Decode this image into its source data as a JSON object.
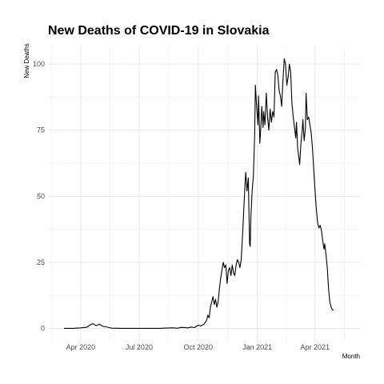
{
  "chart_data": {
    "type": "line",
    "title": "New Deaths of COVID-19 in Slovakia",
    "xlabel": "Month",
    "ylabel": "New Deaths",
    "x_ticks": [
      {
        "date": "2020-04-01",
        "label": "Apr 2020"
      },
      {
        "date": "2020-07-01",
        "label": "Jul 2020"
      },
      {
        "date": "2020-10-01",
        "label": "Oct 2020"
      },
      {
        "date": "2021-01-01",
        "label": "Jan 2021"
      },
      {
        "date": "2021-04-01",
        "label": "Apr 2021"
      }
    ],
    "y_ticks": [
      0,
      25,
      50,
      75,
      100
    ],
    "xlim": [
      "2020-02-10",
      "2021-06-10"
    ],
    "ylim": [
      -5,
      107
    ],
    "grid": true,
    "line_color": "#000000",
    "series": [
      {
        "points": [
          [
            "2020-03-06",
            0
          ],
          [
            "2020-03-20",
            0
          ],
          [
            "2020-04-01",
            0.2
          ],
          [
            "2020-04-10",
            0.4
          ],
          [
            "2020-04-15",
            1.2
          ],
          [
            "2020-04-20",
            1.8
          ],
          [
            "2020-04-25",
            1.0
          ],
          [
            "2020-04-30",
            1.6
          ],
          [
            "2020-05-05",
            0.8
          ],
          [
            "2020-05-10",
            0.6
          ],
          [
            "2020-05-15",
            0.3
          ],
          [
            "2020-05-20",
            0.1
          ],
          [
            "2020-06-01",
            0
          ],
          [
            "2020-07-01",
            0
          ],
          [
            "2020-08-01",
            0
          ],
          [
            "2020-08-20",
            0.2
          ],
          [
            "2020-08-30",
            0.1
          ],
          [
            "2020-09-05",
            0.4
          ],
          [
            "2020-09-15",
            0.2
          ],
          [
            "2020-09-20",
            0.5
          ],
          [
            "2020-09-25",
            0.3
          ],
          [
            "2020-10-01",
            1.2
          ],
          [
            "2020-10-05",
            0.9
          ],
          [
            "2020-10-10",
            1.6
          ],
          [
            "2020-10-14",
            3
          ],
          [
            "2020-10-16",
            5
          ],
          [
            "2020-10-18",
            4
          ],
          [
            "2020-10-20",
            8
          ],
          [
            "2020-10-22",
            10
          ],
          [
            "2020-10-24",
            12
          ],
          [
            "2020-10-26",
            9
          ],
          [
            "2020-10-28",
            11
          ],
          [
            "2020-10-30",
            8
          ],
          [
            "2020-11-01",
            10
          ],
          [
            "2020-11-03",
            15
          ],
          [
            "2020-11-05",
            19
          ],
          [
            "2020-11-07",
            22
          ],
          [
            "2020-11-09",
            25
          ],
          [
            "2020-11-11",
            23
          ],
          [
            "2020-11-13",
            24
          ],
          [
            "2020-11-15",
            17
          ],
          [
            "2020-11-17",
            22
          ],
          [
            "2020-11-19",
            23
          ],
          [
            "2020-11-21",
            20
          ],
          [
            "2020-11-23",
            24
          ],
          [
            "2020-11-25",
            21
          ],
          [
            "2020-11-27",
            20
          ],
          [
            "2020-11-29",
            24
          ],
          [
            "2020-12-01",
            26
          ],
          [
            "2020-12-03",
            25
          ],
          [
            "2020-12-05",
            23
          ],
          [
            "2020-12-07",
            26
          ],
          [
            "2020-12-09",
            35
          ],
          [
            "2020-12-11",
            45
          ],
          [
            "2020-12-13",
            55
          ],
          [
            "2020-12-14",
            59
          ],
          [
            "2020-12-16",
            52
          ],
          [
            "2020-12-18",
            57
          ],
          [
            "2020-12-20",
            32
          ],
          [
            "2020-12-21",
            31
          ],
          [
            "2020-12-22",
            42
          ],
          [
            "2020-12-24",
            52
          ],
          [
            "2020-12-26",
            58
          ],
          [
            "2020-12-28",
            74
          ],
          [
            "2020-12-29",
            92
          ],
          [
            "2020-12-31",
            84
          ],
          [
            "2021-01-02",
            77
          ],
          [
            "2021-01-03",
            88
          ],
          [
            "2021-01-05",
            70
          ],
          [
            "2021-01-07",
            78
          ],
          [
            "2021-01-08",
            84
          ],
          [
            "2021-01-10",
            76
          ],
          [
            "2021-01-11",
            82
          ],
          [
            "2021-01-13",
            77
          ],
          [
            "2021-01-15",
            89
          ],
          [
            "2021-01-17",
            80
          ],
          [
            "2021-01-19",
            75
          ],
          [
            "2021-01-21",
            83
          ],
          [
            "2021-01-23",
            78
          ],
          [
            "2021-01-25",
            82
          ],
          [
            "2021-01-27",
            80
          ],
          [
            "2021-01-29",
            97
          ],
          [
            "2021-01-31",
            98
          ],
          [
            "2021-02-02",
            96
          ],
          [
            "2021-02-04",
            90
          ],
          [
            "2021-02-06",
            88
          ],
          [
            "2021-02-08",
            84
          ],
          [
            "2021-02-10",
            94
          ],
          [
            "2021-02-12",
            102
          ],
          [
            "2021-02-14",
            100
          ],
          [
            "2021-02-16",
            92
          ],
          [
            "2021-02-18",
            95
          ],
          [
            "2021-02-20",
            100
          ],
          [
            "2021-02-22",
            97
          ],
          [
            "2021-02-24",
            85
          ],
          [
            "2021-02-26",
            80
          ],
          [
            "2021-02-28",
            76
          ],
          [
            "2021-03-02",
            72
          ],
          [
            "2021-03-03",
            78
          ],
          [
            "2021-03-05",
            68
          ],
          [
            "2021-03-07",
            64
          ],
          [
            "2021-03-08",
            62
          ],
          [
            "2021-03-10",
            70
          ],
          [
            "2021-03-12",
            75
          ],
          [
            "2021-03-13",
            79
          ],
          [
            "2021-03-15",
            71
          ],
          [
            "2021-03-17",
            76
          ],
          [
            "2021-03-18",
            89
          ],
          [
            "2021-03-20",
            79
          ],
          [
            "2021-03-22",
            80
          ],
          [
            "2021-03-24",
            77
          ],
          [
            "2021-03-26",
            74
          ],
          [
            "2021-03-28",
            68
          ],
          [
            "2021-03-30",
            60
          ],
          [
            "2021-04-01",
            52
          ],
          [
            "2021-04-03",
            45
          ],
          [
            "2021-04-05",
            40
          ],
          [
            "2021-04-07",
            38
          ],
          [
            "2021-04-09",
            39
          ],
          [
            "2021-04-11",
            37
          ],
          [
            "2021-04-13",
            33
          ],
          [
            "2021-04-15",
            30
          ],
          [
            "2021-04-16",
            32
          ],
          [
            "2021-04-18",
            28
          ],
          [
            "2021-04-20",
            23
          ],
          [
            "2021-04-22",
            15
          ],
          [
            "2021-04-24",
            10
          ],
          [
            "2021-04-26",
            8
          ],
          [
            "2021-04-28",
            7
          ],
          [
            "2021-04-30",
            7
          ]
        ]
      }
    ]
  }
}
